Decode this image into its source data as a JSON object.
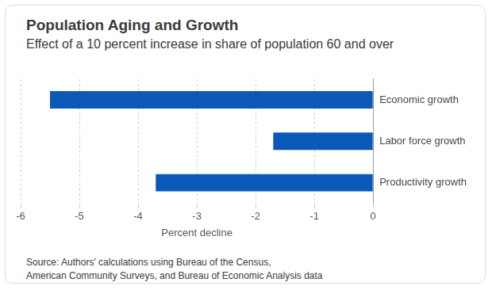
{
  "chart_data": {
    "type": "bar",
    "title": "Population Aging and Growth",
    "subtitle": "Effect of a 10 percent increase in share of population 60 and over",
    "categories": [
      "Economic growth",
      "Labor force growth",
      "Productivity growth"
    ],
    "values": [
      -5.5,
      -1.7,
      -3.7
    ],
    "color": "#0a58b8",
    "orientation": "horizontal",
    "x_label": "Percent decline",
    "xlim": [
      -6,
      0
    ],
    "xticks": [
      -6,
      -5,
      -4,
      -3,
      -2,
      -1,
      0
    ],
    "grid": true,
    "source": [
      "Source: Authors' calculations using Bureau of the Census,",
      "American Community Surveys, and Bureau of Economic Analysis data"
    ]
  }
}
